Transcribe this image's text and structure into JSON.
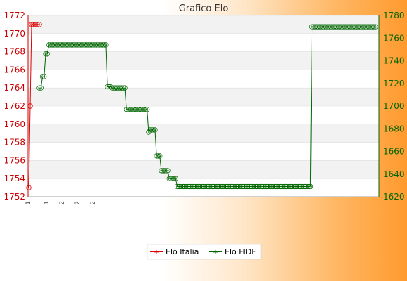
{
  "chart_data": {
    "type": "line",
    "title": "Grafico Elo",
    "x_labels": [
      "1",
      "1",
      "2",
      "2",
      "2"
    ],
    "y_left": {
      "min": 1752,
      "max": 1772,
      "step": 2,
      "color": "#cc0000"
    },
    "y_right": {
      "min": 1620,
      "max": 1780,
      "step": 20,
      "color": "#006600"
    },
    "grid": true,
    "legend_position": "bottom-center",
    "series": [
      {
        "name": "Elo Italia",
        "axis": "left",
        "color": "#dd0000",
        "values": [
          1753,
          1762,
          1771,
          1771,
          1771,
          1771,
          1771
        ]
      },
      {
        "name": "Elo FIDE",
        "axis": "right",
        "color": "#006600",
        "values": [
          1716,
          1716,
          1726,
          1726,
          1746,
          1746,
          1754,
          1754,
          1754,
          1754,
          1754,
          1754,
          1754,
          1754,
          1754,
          1754,
          1754,
          1754,
          1754,
          1754,
          1754,
          1754,
          1754,
          1754,
          1754,
          1754,
          1754,
          1754,
          1754,
          1754,
          1754,
          1754,
          1754,
          1754,
          1754,
          1754,
          1754,
          1754,
          1754,
          1754,
          1754,
          1754,
          1754,
          1717,
          1717,
          1717,
          1716,
          1716,
          1716,
          1716,
          1716,
          1716,
          1716,
          1716,
          1716,
          1697,
          1697,
          1697,
          1697,
          1697,
          1697,
          1697,
          1697,
          1697,
          1697,
          1697,
          1697,
          1697,
          1697,
          1677,
          1679,
          1679,
          1679,
          1679,
          1656,
          1656,
          1656,
          1643,
          1643,
          1643,
          1643,
          1643,
          1636,
          1636,
          1636,
          1636,
          1636,
          1629,
          1629,
          1629,
          1629,
          1629,
          1629,
          1629,
          1629,
          1629,
          1629,
          1629,
          1629,
          1629,
          1629,
          1629,
          1629,
          1629,
          1629,
          1629,
          1629,
          1629,
          1629,
          1629,
          1629,
          1629,
          1629,
          1629,
          1629,
          1629,
          1629,
          1629,
          1629,
          1629,
          1629,
          1629,
          1629,
          1629,
          1629,
          1629,
          1629,
          1629,
          1629,
          1629,
          1629,
          1629,
          1629,
          1629,
          1629,
          1629,
          1629,
          1629,
          1629,
          1629,
          1629,
          1629,
          1629,
          1629,
          1629,
          1629,
          1629,
          1629,
          1629,
          1629,
          1629,
          1629,
          1629,
          1629,
          1629,
          1629,
          1629,
          1629,
          1629,
          1629,
          1629,
          1629,
          1629,
          1629,
          1629,
          1629,
          1629,
          1629,
          1629,
          1629,
          1629,
          1629,
          1770,
          1770,
          1770,
          1770,
          1770,
          1770,
          1770,
          1770,
          1770,
          1770,
          1770,
          1770,
          1770,
          1770,
          1770,
          1770,
          1770,
          1770,
          1770,
          1770,
          1770,
          1770,
          1770,
          1770,
          1770,
          1770,
          1770,
          1770,
          1770,
          1770,
          1770,
          1770,
          1770,
          1770,
          1770,
          1770,
          1770,
          1770,
          1770,
          1770,
          1770
        ]
      }
    ]
  }
}
